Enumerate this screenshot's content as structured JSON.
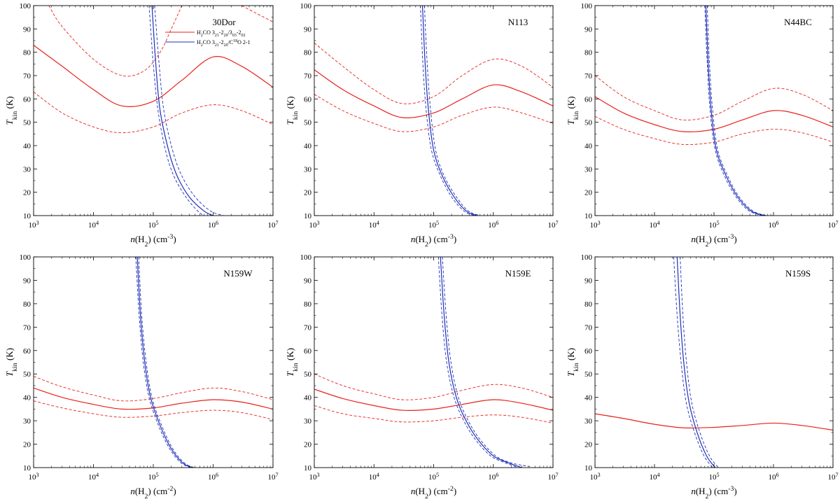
{
  "figure": {
    "background": "#ffffff",
    "ratio_color": "#e8221b",
    "c18o_color": "#1f2fb8"
  },
  "chart_data": [
    {
      "type": "line",
      "title": "30Dor",
      "xlabel": "n(H2) (cm-3)",
      "ylabel": "Tkin (K)",
      "xscale": "log",
      "xlim": [
        1000,
        10000000
      ],
      "ylim": [
        10,
        100
      ],
      "xticks": [
        1000,
        10000,
        100000,
        1000000,
        10000000
      ],
      "yticks": [
        10,
        20,
        30,
        40,
        50,
        60,
        70,
        80,
        90,
        100
      ],
      "legend": {
        "position": "top-right",
        "entries": [
          "H2CO 321-220/303-202",
          "H2CO 321-220/C18O 2-1"
        ]
      },
      "series": [
        {
          "name": "H2CO 321-220/303-202",
          "style": "solid",
          "color": "#e8221b",
          "x": [
            1000,
            3000,
            10000,
            30000,
            100000,
            300000,
            1000000,
            3000000,
            10000000
          ],
          "y": [
            83,
            74,
            64,
            57,
            59,
            68,
            78,
            74,
            65
          ]
        },
        {
          "name": "H2CO 321-220/303-202 lower",
          "style": "dashed",
          "color": "#e8221b",
          "x": [
            1000,
            3000,
            10000,
            30000,
            100000,
            300000,
            1000000,
            3000000,
            10000000
          ],
          "y": [
            63,
            54,
            48,
            45.5,
            48,
            54,
            57.5,
            55,
            49
          ]
        },
        {
          "name": "H2CO 321-220/303-202 upper",
          "style": "dashed",
          "color": "#e8221b",
          "x": [
            1800,
            3000,
            10000,
            30000,
            70000,
            130000,
            200000,
            300000
          ],
          "y": [
            100,
            91,
            77,
            70,
            72,
            80,
            90,
            100
          ]
        },
        {
          "name": "H2CO 321-220/303-202 upper (high density)",
          "style": "dashed",
          "color": "#e8221b",
          "x": [
            3000000,
            5000000,
            10000000
          ],
          "y": [
            100,
            97,
            93
          ]
        },
        {
          "name": "H2CO 321-220/C18O 2-1",
          "style": "solid",
          "color": "#1f2fb8",
          "x": [
            95000,
            110000,
            130000,
            180000,
            250000,
            400000,
            700000,
            1000000
          ],
          "y": [
            100,
            75,
            55,
            38,
            27,
            18,
            12,
            10
          ]
        },
        {
          "name": "H2CO 321-220/C18O 2-1 lower",
          "style": "dashed",
          "color": "#1f2fb8",
          "x": [
            85000,
            100000,
            120000,
            160000,
            220000,
            350000,
            550000,
            700000
          ],
          "y": [
            100,
            75,
            55,
            38,
            27,
            18,
            12,
            10
          ]
        },
        {
          "name": "H2CO 321-220/C18O 2-1 upper",
          "style": "dashed",
          "color": "#1f2fb8",
          "x": [
            105000,
            125000,
            150000,
            210000,
            300000,
            500000,
            900000,
            1500000
          ],
          "y": [
            100,
            75,
            55,
            38,
            27,
            18,
            12,
            10
          ]
        }
      ]
    },
    {
      "type": "line",
      "title": "N113",
      "xlabel": "n(H2) (cm-3)",
      "ylabel": "Tkin (K)",
      "xscale": "log",
      "xlim": [
        1000,
        10000000
      ],
      "ylim": [
        10,
        100
      ],
      "xticks": [
        1000,
        10000,
        100000,
        1000000,
        10000000
      ],
      "yticks": [
        10,
        20,
        30,
        40,
        50,
        60,
        70,
        80,
        90,
        100
      ],
      "series": [
        {
          "name": "ratio",
          "style": "solid",
          "color": "#e8221b",
          "x": [
            1000,
            3000,
            10000,
            30000,
            100000,
            300000,
            1000000,
            3000000,
            10000000
          ],
          "y": [
            72.5,
            64,
            57,
            52,
            54,
            60,
            66,
            63,
            57
          ]
        },
        {
          "name": "ratio lower",
          "style": "dashed",
          "color": "#e8221b",
          "x": [
            1000,
            3000,
            10000,
            30000,
            100000,
            300000,
            1000000,
            3000000,
            10000000
          ],
          "y": [
            62,
            55,
            49.5,
            46,
            48,
            53,
            56.5,
            54,
            49.5
          ]
        },
        {
          "name": "ratio upper",
          "style": "dashed",
          "color": "#e8221b",
          "x": [
            1000,
            3000,
            10000,
            30000,
            100000,
            300000,
            1000000,
            3000000,
            10000000
          ],
          "y": [
            84,
            74,
            64,
            58,
            61,
            70,
            77,
            74,
            65
          ]
        },
        {
          "name": "c18o",
          "style": "solid",
          "color": "#1f2fb8",
          "x": [
            65000,
            72000,
            82000,
            100000,
            140000,
            220000,
            350000,
            530000
          ],
          "y": [
            100,
            75,
            55,
            38,
            27,
            18,
            12,
            10
          ]
        },
        {
          "name": "c18o lower",
          "style": "dashed",
          "color": "#1f2fb8",
          "x": [
            60000,
            66000,
            75000,
            92000,
            130000,
            200000,
            320000,
            480000
          ],
          "y": [
            100,
            75,
            55,
            38,
            27,
            18,
            12,
            10
          ]
        },
        {
          "name": "c18o upper",
          "style": "dashed",
          "color": "#1f2fb8",
          "x": [
            70000,
            78000,
            89000,
            108000,
            150000,
            240000,
            380000,
            600000
          ],
          "y": [
            100,
            75,
            55,
            38,
            27,
            18,
            12,
            10
          ]
        }
      ]
    },
    {
      "type": "line",
      "title": "N44BC",
      "xlabel": "n(H2) (cm-3)",
      "ylabel": "Tkin (K)",
      "xscale": "log",
      "xlim": [
        1000,
        10000000
      ],
      "ylim": [
        10,
        100
      ],
      "xticks": [
        1000,
        10000,
        100000,
        1000000,
        10000000
      ],
      "yticks": [
        10,
        20,
        30,
        40,
        50,
        60,
        70,
        80,
        90,
        100
      ],
      "series": [
        {
          "name": "ratio",
          "style": "solid",
          "color": "#e8221b",
          "x": [
            1000,
            3000,
            10000,
            30000,
            100000,
            300000,
            1000000,
            3000000,
            10000000
          ],
          "y": [
            61,
            54,
            49,
            46,
            47,
            51,
            55,
            53,
            48
          ]
        },
        {
          "name": "ratio lower",
          "style": "dashed",
          "color": "#e8221b",
          "x": [
            1000,
            3000,
            10000,
            30000,
            100000,
            300000,
            1000000,
            3000000,
            10000000
          ],
          "y": [
            52.5,
            47,
            43,
            40.5,
            41.5,
            45,
            47,
            45.5,
            41.5
          ]
        },
        {
          "name": "ratio upper",
          "style": "dashed",
          "color": "#e8221b",
          "x": [
            1000,
            3000,
            10000,
            30000,
            100000,
            300000,
            1000000,
            3000000,
            10000000
          ],
          "y": [
            70,
            61,
            55,
            51,
            53,
            59,
            64.5,
            62,
            55
          ]
        },
        {
          "name": "c18o",
          "style": "solid",
          "color": "#1f2fb8",
          "x": [
            73000,
            80000,
            90000,
            110000,
            160000,
            250000,
            420000,
            720000
          ],
          "y": [
            100,
            75,
            55,
            38,
            27,
            18,
            12,
            10
          ]
        },
        {
          "name": "c18o lower",
          "style": "dashed",
          "color": "#1f2fb8",
          "x": [
            70000,
            77000,
            86000,
            105000,
            150000,
            235000,
            390000,
            680000
          ],
          "y": [
            100,
            75,
            55,
            38,
            27,
            18,
            12,
            10
          ]
        },
        {
          "name": "c18o upper",
          "style": "dashed",
          "color": "#1f2fb8",
          "x": [
            77000,
            84000,
            95000,
            116000,
            170000,
            265000,
            450000,
            760000
          ],
          "y": [
            100,
            75,
            55,
            38,
            27,
            18,
            12,
            10
          ]
        }
      ]
    },
    {
      "type": "line",
      "title": "N159W",
      "xlabel": "n(H2) (cm-2)",
      "ylabel": "Tkin (K)",
      "xscale": "log",
      "xlim": [
        1000,
        10000000
      ],
      "ylim": [
        10,
        100
      ],
      "xticks": [
        1000,
        10000,
        100000,
        1000000,
        10000000
      ],
      "yticks": [
        10,
        20,
        30,
        40,
        50,
        60,
        70,
        80,
        90,
        100
      ],
      "series": [
        {
          "name": "ratio",
          "style": "solid",
          "color": "#e8221b",
          "x": [
            1000,
            3000,
            10000,
            30000,
            100000,
            300000,
            1000000,
            3000000,
            10000000
          ],
          "y": [
            44,
            40,
            37,
            35,
            35.5,
            37.5,
            39,
            38,
            35
          ]
        },
        {
          "name": "ratio lower",
          "style": "dashed",
          "color": "#e8221b",
          "x": [
            1000,
            3000,
            10000,
            30000,
            100000,
            300000,
            1000000,
            3000000,
            10000000
          ],
          "y": [
            38.5,
            35.5,
            33,
            31.5,
            32,
            33.5,
            34.5,
            33.5,
            30.5
          ]
        },
        {
          "name": "ratio upper",
          "style": "dashed",
          "color": "#e8221b",
          "x": [
            1000,
            3000,
            10000,
            30000,
            100000,
            300000,
            1000000,
            3000000,
            10000000
          ],
          "y": [
            49,
            44.5,
            41,
            38.5,
            39.5,
            42,
            44,
            42.5,
            39
          ]
        },
        {
          "name": "c18o",
          "style": "solid",
          "color": "#1f2fb8",
          "x": [
            54000,
            61000,
            72000,
            90000,
            130000,
            200000,
            310000,
            450000
          ],
          "y": [
            100,
            75,
            55,
            40,
            28,
            18,
            12,
            10
          ]
        },
        {
          "name": "c18o lower",
          "style": "dashed",
          "color": "#1f2fb8",
          "x": [
            51000,
            58000,
            68000,
            85000,
            122000,
            188000,
            290000,
            420000
          ],
          "y": [
            100,
            75,
            55,
            40,
            28,
            18,
            12,
            10
          ]
        },
        {
          "name": "c18o upper",
          "style": "dashed",
          "color": "#1f2fb8",
          "x": [
            57000,
            64000,
            76000,
            95000,
            138000,
            212000,
            330000,
            480000
          ],
          "y": [
            100,
            75,
            55,
            40,
            28,
            18,
            12,
            10
          ]
        }
      ]
    },
    {
      "type": "line",
      "title": "N159E",
      "xlabel": "n(H2) (cm-2)",
      "ylabel": "Tkin (K)",
      "xscale": "log",
      "xlim": [
        1000,
        10000000
      ],
      "ylim": [
        10,
        100
      ],
      "xticks": [
        1000,
        10000,
        100000,
        1000000,
        10000000
      ],
      "yticks": [
        10,
        20,
        30,
        40,
        50,
        60,
        70,
        80,
        90,
        100
      ],
      "series": [
        {
          "name": "ratio",
          "style": "solid",
          "color": "#e8221b",
          "x": [
            1000,
            3000,
            10000,
            30000,
            100000,
            300000,
            1000000,
            3000000,
            10000000
          ],
          "y": [
            43.5,
            39.5,
            36.5,
            34.5,
            35,
            37,
            39,
            37.5,
            34.5
          ]
        },
        {
          "name": "ratio lower",
          "style": "dashed",
          "color": "#e8221b",
          "x": [
            1000,
            3000,
            10000,
            30000,
            100000,
            300000,
            1000000,
            3000000,
            10000000
          ],
          "y": [
            36.5,
            33,
            31,
            29.5,
            30,
            31.5,
            32.5,
            31.5,
            29
          ]
        },
        {
          "name": "ratio upper",
          "style": "dashed",
          "color": "#e8221b",
          "x": [
            1000,
            3000,
            10000,
            30000,
            100000,
            300000,
            1000000,
            3000000,
            10000000
          ],
          "y": [
            50,
            45,
            41.5,
            39,
            40,
            43,
            45.5,
            44,
            40
          ]
        },
        {
          "name": "c18o",
          "style": "solid",
          "color": "#1f2fb8",
          "x": [
            130000,
            150000,
            180000,
            240000,
            350000,
            550000,
            1000000,
            1800000,
            3000000
          ],
          "y": [
            100,
            75,
            55,
            40,
            30,
            22,
            15,
            12,
            10
          ]
        },
        {
          "name": "c18o lower",
          "style": "dashed",
          "color": "#1f2fb8",
          "x": [
            120000,
            138000,
            165000,
            220000,
            320000,
            500000,
            900000,
            1600000,
            2600000
          ],
          "y": [
            100,
            75,
            55,
            40,
            30,
            22,
            15,
            12,
            10
          ]
        },
        {
          "name": "c18o upper",
          "style": "dashed",
          "color": "#1f2fb8",
          "x": [
            140000,
            162000,
            195000,
            260000,
            380000,
            600000,
            1100000,
            2000000,
            4000000
          ],
          "y": [
            100,
            75,
            55,
            40,
            30,
            22,
            15,
            12,
            10.5
          ]
        }
      ]
    },
    {
      "type": "line",
      "title": "N159S",
      "xlabel": "n(H2) (cm-3)",
      "ylabel": "Tkin (K)",
      "xscale": "log",
      "xlim": [
        1000,
        10000000
      ],
      "ylim": [
        10,
        100
      ],
      "xticks": [
        1000,
        10000,
        100000,
        1000000,
        10000000
      ],
      "yticks": [
        10,
        20,
        30,
        40,
        50,
        60,
        70,
        80,
        90,
        100
      ],
      "series": [
        {
          "name": "ratio",
          "style": "solid",
          "color": "#e8221b",
          "x": [
            1000,
            3000,
            10000,
            30000,
            100000,
            300000,
            1000000,
            3000000,
            10000000
          ],
          "y": [
            33,
            31,
            28.5,
            27,
            27.2,
            28,
            29,
            28,
            26
          ]
        },
        {
          "name": "c18o",
          "style": "solid",
          "color": "#1f2fb8",
          "x": [
            24000,
            27000,
            31000,
            38000,
            52000,
            75000,
            105000
          ],
          "y": [
            100,
            75,
            55,
            38,
            25,
            15,
            10
          ]
        },
        {
          "name": "c18o lower",
          "style": "dashed",
          "color": "#1f2fb8",
          "x": [
            21000,
            24000,
            28000,
            34000,
            47000,
            68000,
            95000
          ],
          "y": [
            100,
            75,
            55,
            38,
            25,
            15,
            10
          ]
        },
        {
          "name": "c18o upper",
          "style": "dashed",
          "color": "#1f2fb8",
          "x": [
            27000,
            30000,
            34500,
            42000,
            58000,
            84000,
            118000
          ],
          "y": [
            100,
            75,
            55,
            38,
            25,
            15,
            10
          ]
        }
      ]
    }
  ]
}
